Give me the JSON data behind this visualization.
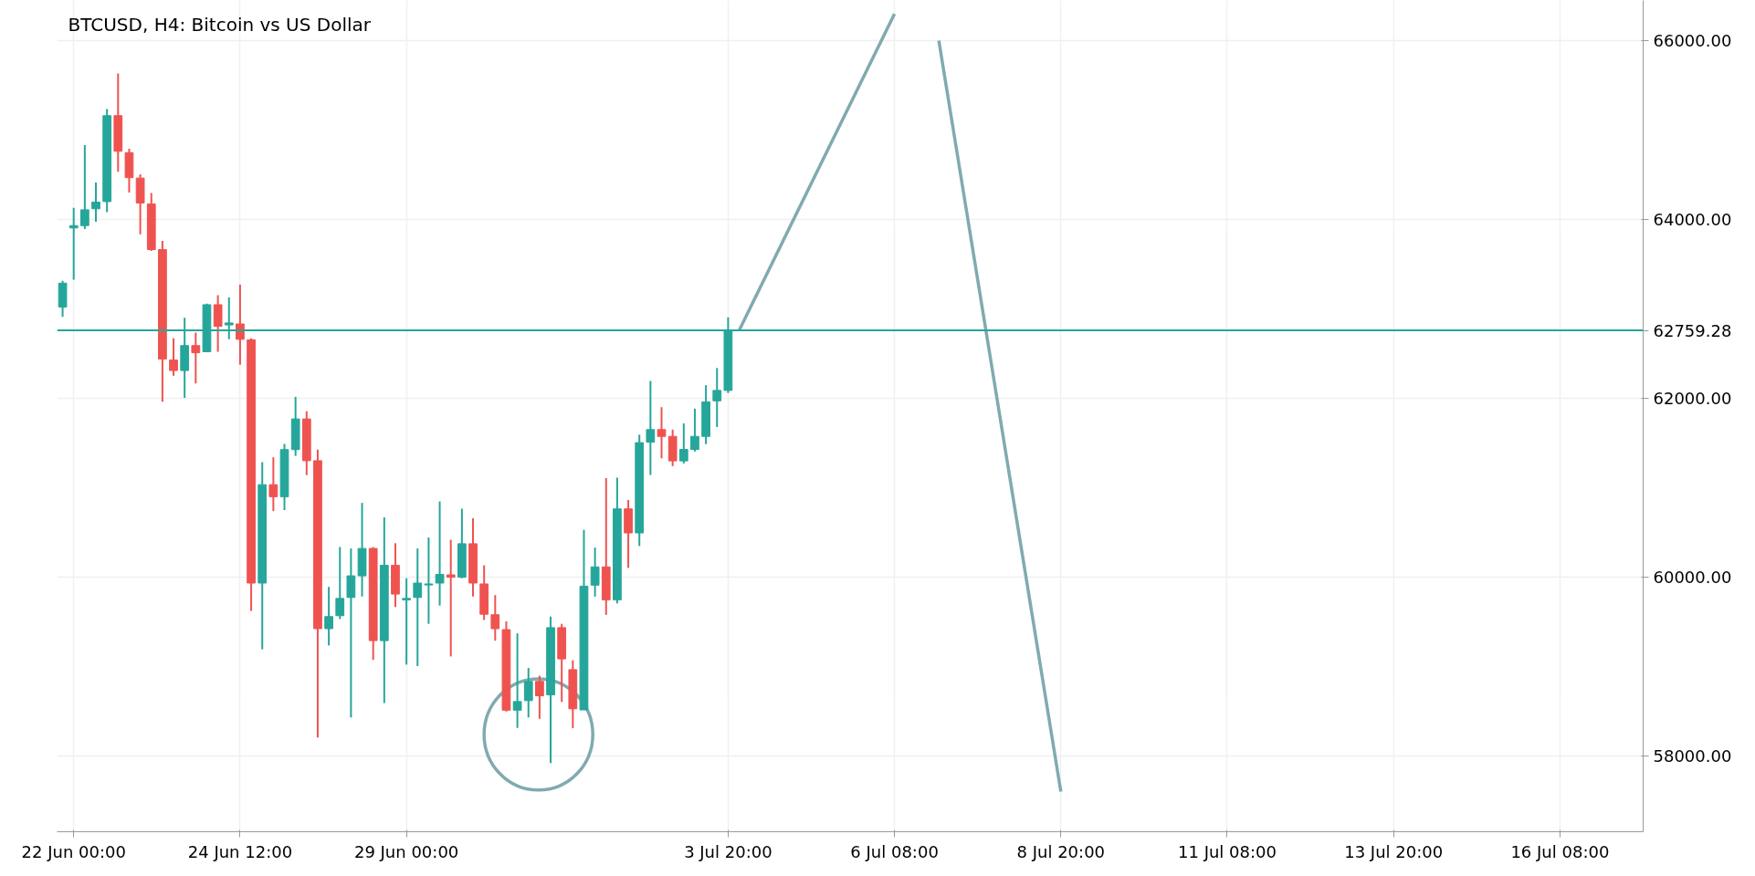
{
  "chart_data": {
    "type": "candlestick",
    "title": "BTCUSD, H4: Bitcoin vs US Dollar",
    "categories": [
      null,
      "22 Jun 00:00",
      null,
      null,
      null,
      null,
      null,
      null,
      null,
      null,
      null,
      null,
      null,
      null,
      null,
      null,
      "24 Jun 12:00",
      null,
      null,
      null,
      null,
      null,
      null,
      null,
      null,
      null,
      null,
      null,
      null,
      null,
      null,
      "29 Jun 00:00",
      null,
      null,
      null,
      null,
      null,
      null,
      null,
      null,
      null,
      null,
      null,
      null,
      null,
      null,
      null,
      null,
      null,
      null,
      null,
      null,
      null,
      null,
      null,
      null,
      null,
      null,
      null,
      null,
      "3 Jul 20:00",
      null,
      null,
      null,
      null,
      null,
      null,
      null,
      null,
      null,
      null,
      null,
      null,
      null,
      null,
      "6 Jul 08:00",
      null,
      null,
      null,
      null,
      null,
      null,
      null,
      null,
      null,
      null,
      null,
      null,
      null,
      null,
      "8 Jul 20:00",
      null,
      null,
      null,
      null,
      null,
      null,
      null,
      null,
      null,
      null,
      null,
      null,
      null,
      null,
      "11 Jul 08:00",
      null,
      null,
      null,
      null,
      null,
      null,
      null,
      null,
      null,
      null,
      null,
      null,
      null,
      null,
      "13 Jul 20:00",
      null,
      null,
      null,
      null,
      null,
      null,
      null,
      null,
      null,
      null,
      null,
      null,
      null,
      null,
      "16 Jul 08:00",
      null,
      null,
      null,
      null,
      null,
      null,
      null
    ],
    "ohlc": [
      [
        63019,
        63314,
        62911,
        63287
      ],
      [
        63905,
        64130,
        63325,
        63931
      ],
      [
        63931,
        64833,
        63894,
        64108
      ],
      [
        64119,
        64414,
        63974,
        64194
      ],
      [
        64200,
        65236,
        64082,
        65161
      ],
      [
        65161,
        65633,
        64533,
        64763
      ],
      [
        64747,
        64790,
        64302,
        64468
      ],
      [
        64463,
        64506,
        63835,
        64184
      ],
      [
        64173,
        64296,
        63647,
        63663
      ],
      [
        63663,
        63760,
        61961,
        62439
      ],
      [
        62428,
        62670,
        62251,
        62310
      ],
      [
        62310,
        62901,
        62004,
        62589
      ],
      [
        62589,
        62734,
        62165,
        62509
      ],
      [
        62520,
        63057,
        62520,
        63046
      ],
      [
        63046,
        63153,
        62520,
        62804
      ],
      [
        62820,
        63126,
        62659,
        62842
      ],
      [
        62831,
        63271,
        62375,
        62659
      ],
      [
        62654,
        62670,
        59621,
        59932
      ],
      [
        59932,
        61285,
        59191,
        61033
      ],
      [
        61033,
        61339,
        60737,
        60898
      ],
      [
        60898,
        61489,
        60748,
        61425
      ],
      [
        61425,
        62015,
        61355,
        61768
      ],
      [
        61768,
        61854,
        61140,
        61301
      ],
      [
        61301,
        61425,
        58204,
        59422
      ],
      [
        59422,
        59889,
        59234,
        59557
      ],
      [
        59567,
        60335,
        59530,
        59760
      ],
      [
        59771,
        60319,
        58429,
        60013
      ],
      [
        60013,
        60829,
        59782,
        60319
      ],
      [
        60319,
        60335,
        59073,
        59288
      ],
      [
        59288,
        60668,
        58590,
        60131
      ],
      [
        60131,
        60378,
        59664,
        59809
      ],
      [
        59744,
        59986,
        59020,
        59760
      ],
      [
        59771,
        60319,
        59004,
        59932
      ],
      [
        59911,
        60442,
        59476,
        59922
      ],
      [
        59932,
        60845,
        59680,
        60029
      ],
      [
        60024,
        60416,
        59111,
        59997
      ],
      [
        59997,
        60764,
        59986,
        60372
      ],
      [
        60372,
        60657,
        59782,
        59932
      ],
      [
        59922,
        60131,
        59519,
        59583
      ],
      [
        59578,
        59798,
        59288,
        59422
      ],
      [
        59411,
        59503,
        58494,
        58510
      ],
      [
        58510,
        59369,
        58311,
        58606
      ],
      [
        58617,
        58982,
        58429,
        58832
      ],
      [
        58832,
        58896,
        58413,
        58671
      ],
      [
        58682,
        59557,
        57919,
        59433
      ],
      [
        59433,
        59476,
        58601,
        59084
      ],
      [
        58963,
        59068,
        58309,
        58525
      ],
      [
        58513,
        60528,
        58513,
        59897
      ],
      [
        59909,
        60329,
        59781,
        60113
      ],
      [
        60113,
        61106,
        59576,
        59745
      ],
      [
        59745,
        61112,
        59704,
        60762
      ],
      [
        60762,
        60861,
        60102,
        60493
      ],
      [
        60493,
        61591,
        60347,
        61503
      ],
      [
        61509,
        62193,
        61141,
        61649
      ],
      [
        61649,
        61900,
        61328,
        61573
      ],
      [
        61573,
        61649,
        61240,
        61299
      ],
      [
        61299,
        61719,
        61270,
        61427
      ],
      [
        61427,
        61883,
        61404,
        61573
      ],
      [
        61573,
        62146,
        61486,
        61959
      ],
      [
        61971,
        62338,
        61678,
        62087
      ],
      [
        62087,
        62905,
        62058,
        62759
      ],
      null,
      null,
      null,
      null,
      null,
      null,
      null,
      null,
      null,
      null,
      null,
      null,
      null,
      null,
      null,
      null,
      null,
      null,
      null,
      null,
      null,
      null,
      null,
      null,
      null,
      null,
      null,
      null,
      null,
      null,
      null,
      null,
      null,
      null,
      null,
      null,
      null,
      null,
      null,
      null,
      null,
      null,
      null,
      null,
      null,
      null,
      null,
      null,
      null,
      null,
      null,
      null,
      null,
      null,
      null,
      null,
      null,
      null,
      null,
      null,
      null,
      null,
      null,
      null,
      null,
      null,
      null,
      null,
      null,
      null,
      null,
      null,
      null,
      null,
      null,
      null,
      null,
      null,
      null,
      null,
      null,
      null
    ],
    "colors": [
      "#26a69a",
      "#26a69a",
      "#26a69a",
      "#26a69a",
      "#26a69a",
      "#ef5350",
      "#ef5350",
      "#ef5350",
      "#ef5350",
      "#ef5350",
      "#ef5350",
      "#26a69a",
      "#ef5350",
      "#26a69a",
      "#ef5350",
      "#26a69a",
      "#ef5350",
      "#ef5350",
      "#26a69a",
      "#ef5350",
      "#26a69a",
      "#26a69a",
      "#ef5350",
      "#ef5350",
      "#26a69a",
      "#26a69a",
      "#26a69a",
      "#26a69a",
      "#ef5350",
      "#26a69a",
      "#ef5350",
      "#26a69a",
      "#26a69a",
      "#26a69a",
      "#26a69a",
      "#ef5350",
      "#26a69a",
      "#ef5350",
      "#ef5350",
      "#ef5350",
      "#ef5350",
      "#26a69a",
      "#26a69a",
      "#ef5350",
      "#26a69a",
      "#ef5350",
      "#ef5350",
      "#26a69a",
      "#26a69a",
      "#ef5350",
      "#26a69a",
      "#ef5350",
      "#26a69a",
      "#26a69a",
      "#ef5350",
      "#ef5350",
      "#26a69a",
      "#26a69a",
      "#26a69a",
      "#26a69a",
      "#26a69a",
      null,
      null,
      null,
      null,
      null,
      null,
      null,
      null,
      null,
      null,
      null,
      null,
      null,
      null,
      null,
      null,
      null,
      null,
      null,
      null,
      null,
      null,
      null,
      null,
      null,
      null,
      null,
      null,
      null,
      null,
      null,
      null,
      null,
      null,
      null,
      null,
      null,
      null,
      null,
      null,
      null,
      null,
      null,
      null,
      null,
      null,
      null,
      null,
      null,
      null,
      null,
      null,
      null,
      null,
      null,
      null,
      null,
      null,
      null,
      null,
      null,
      null,
      null,
      null,
      null,
      null,
      null,
      null,
      null,
      null,
      null,
      null,
      null,
      null,
      null,
      null,
      null,
      null,
      null,
      null,
      null,
      null
    ],
    "series": [
      {
        "type": "line",
        "color": "#80aab0",
        "values": [
          null,
          null,
          null,
          null,
          null,
          null,
          null,
          null,
          null,
          null,
          null,
          null,
          null,
          null,
          null,
          null,
          null,
          null,
          null,
          null,
          null,
          null,
          null,
          null,
          null,
          null,
          null,
          null,
          null,
          null,
          null,
          null,
          null,
          null,
          null,
          null,
          null,
          null,
          null,
          null,
          null,
          null,
          null,
          null,
          null,
          null,
          null,
          null,
          null,
          null,
          null,
          null,
          null,
          null,
          null,
          null,
          null,
          null,
          null,
          null,
          null,
          62760,
          null,
          null,
          null,
          null,
          null,
          null,
          null,
          null,
          null,
          null,
          null,
          null,
          null,
          66300,
          null,
          null,
          null,
          null,
          null,
          null,
          null,
          null,
          null,
          null,
          null,
          null,
          null,
          null,
          null,
          null,
          null,
          null,
          null,
          null,
          null,
          null,
          null,
          null,
          null,
          null,
          null,
          null,
          null,
          null,
          null,
          null,
          null,
          null,
          null,
          null,
          null,
          null,
          null,
          null,
          null,
          null,
          null,
          null,
          null,
          null,
          null,
          null,
          null,
          null,
          null,
          null,
          null,
          null,
          null,
          null,
          null,
          null,
          null,
          null,
          null,
          null,
          null,
          null,
          null,
          null,
          null
        ]
      },
      {
        "type": "line",
        "color": "#80aab0",
        "values": [
          null,
          null,
          null,
          null,
          null,
          null,
          null,
          null,
          null,
          null,
          null,
          null,
          null,
          null,
          null,
          null,
          null,
          null,
          null,
          null,
          null,
          null,
          null,
          null,
          null,
          null,
          null,
          null,
          null,
          null,
          null,
          null,
          null,
          null,
          null,
          null,
          null,
          null,
          null,
          null,
          null,
          null,
          null,
          null,
          null,
          null,
          null,
          null,
          null,
          null,
          null,
          null,
          null,
          null,
          null,
          null,
          null,
          null,
          null,
          null,
          null,
          null,
          null,
          null,
          null,
          null,
          null,
          null,
          null,
          null,
          null,
          null,
          null,
          null,
          null,
          null,
          null,
          null,
          null,
          66000,
          null,
          null,
          null,
          null,
          null,
          null,
          null,
          null,
          null,
          null,
          57600,
          null,
          null,
          null,
          null,
          null,
          null,
          null,
          null,
          null,
          null,
          null,
          null,
          null,
          null,
          null,
          null,
          null,
          null,
          null,
          null,
          null,
          null,
          null,
          null,
          null,
          null,
          null,
          null,
          null,
          null,
          null,
          null,
          null,
          null,
          null,
          null,
          null,
          null,
          null,
          null,
          null,
          null,
          null,
          null,
          null,
          null,
          null,
          null,
          null,
          null,
          null,
          null
        ]
      }
    ],
    "ref_lines": [
      {
        "axis": "y",
        "value": 62759.28,
        "label": "62759.28",
        "color": "#26a69a"
      }
    ],
    "ylim": [
      57150,
      66450
    ],
    "yticks": [
      {
        "value": 58000,
        "label": "58000.00"
      },
      {
        "value": 60000,
        "label": "60000.00"
      },
      {
        "value": 62000,
        "label": "62000.00"
      },
      {
        "value": 64000,
        "label": "64000.00"
      },
      {
        "value": 66000,
        "label": "66000.00"
      }
    ],
    "grid": true
  }
}
